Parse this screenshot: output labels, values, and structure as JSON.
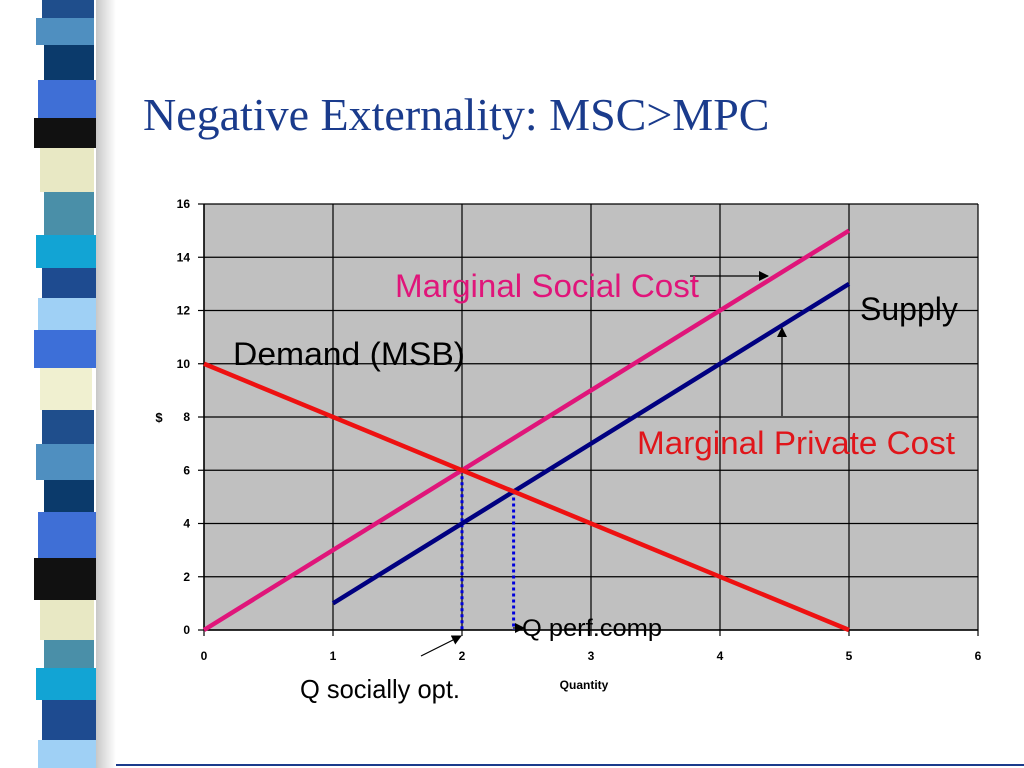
{
  "slide": {
    "title": "Negative Externality: MSC>MPC"
  },
  "theme": {
    "title_color": "#1a3b8c",
    "stripe_colors": [
      "#1f4e8c",
      "#4f8fc0",
      "#0b3a6b",
      "#3f6fd6",
      "#111111",
      "#e8e8c4",
      "#4a8fa8",
      "#12a4d4",
      "#1e4b90",
      "#9fd0f5",
      "#3d6fd8",
      "#f0f0d0"
    ]
  },
  "chart_data": {
    "type": "line",
    "title": "",
    "xlabel": "Quantity",
    "ylabel": "$",
    "xlim": [
      0,
      6
    ],
    "ylim": [
      0,
      16
    ],
    "x_ticks": [
      "0",
      "1",
      "2",
      "3",
      "4",
      "5",
      "6"
    ],
    "y_ticks": [
      "0",
      "2",
      "4",
      "6",
      "8",
      "10",
      "12",
      "14",
      "16"
    ],
    "grid": true,
    "plot_background": "#c0c0c0",
    "series": [
      {
        "name": "Marginal Social Cost",
        "color": "#e0157a",
        "x": [
          0,
          5
        ],
        "y": [
          0,
          15
        ]
      },
      {
        "name": "Supply",
        "color": "#000080",
        "x": [
          1,
          1.5,
          5
        ],
        "y": [
          1,
          2.5,
          13
        ]
      },
      {
        "name": "Demand (MSB)",
        "color": "#ee1111",
        "x": [
          0,
          5
        ],
        "y": [
          10,
          0
        ]
      }
    ],
    "reference_lines": [
      {
        "name": "Q socially opt.",
        "x": 2.0,
        "y": 6.0,
        "color": "#0000dd"
      },
      {
        "name": "Q perf.comp",
        "x": 2.4,
        "y": 5.2,
        "color": "#0000dd"
      }
    ],
    "annotations": {
      "msc_label": "Marginal Social Cost",
      "supply_label": "Supply",
      "demand_label": "Demand (MSB)",
      "mpc_label": "Marginal Private Cost",
      "q_social_label": "Q socially opt.",
      "q_perf_label": "Q perf.comp",
      "msc_color": "#e0157a",
      "mpc_color": "#e0151a"
    }
  }
}
